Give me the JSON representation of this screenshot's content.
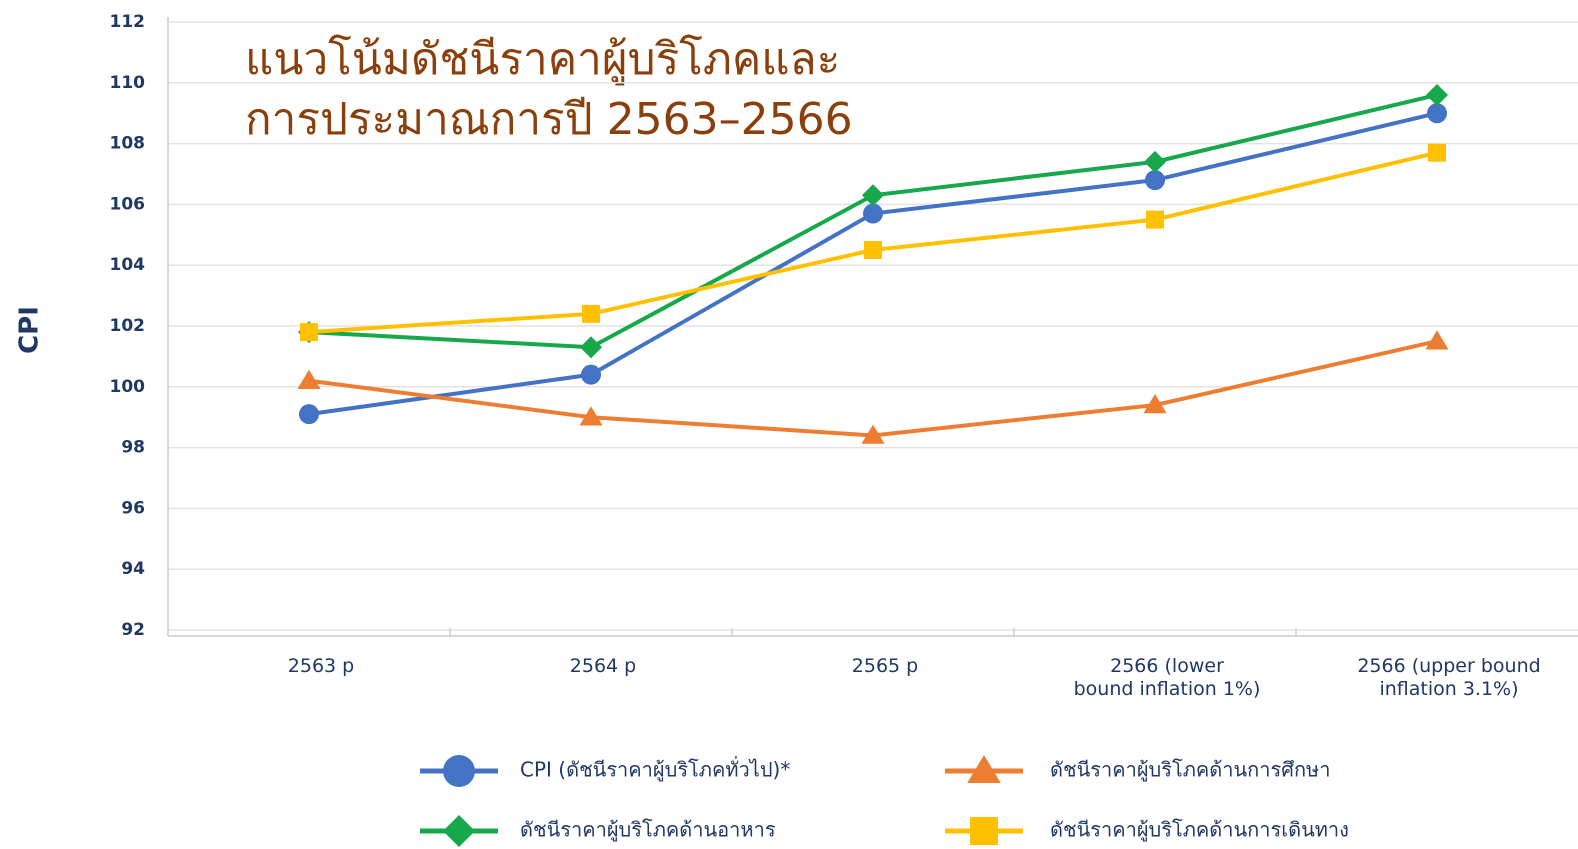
{
  "chart_data": {
    "type": "line",
    "title": [
      "แนวโน้มดัชนีราคาผู้บริโภคและ",
      "การประมาณการปี 2563–2566"
    ],
    "y_label": "CPI",
    "categories": [
      "2563 p",
      "2564 p",
      "2565 p",
      "2566 (lower\nbound inflation 1%)",
      "2566 (upper bound\ninflation 3.1%)"
    ],
    "series": [
      {
        "name": "CPI (ดัชนีราคาผู้บริโภคทั่วไป)*",
        "color": "#4472c4",
        "marker": "circle",
        "values": [
          99.1,
          100.4,
          105.7,
          106.8,
          109.0
        ]
      },
      {
        "name": "ดัชนีราคาผู้บริโภคด้านการศึกษา",
        "color": "#ed7d31",
        "marker": "triangle",
        "values": [
          100.2,
          99.0,
          98.4,
          99.4,
          101.5
        ]
      },
      {
        "name": "ดัชนีราคาผู้บริโภคด้านอาหาร",
        "color": "#16a84a",
        "marker": "diamond",
        "values": [
          101.8,
          101.3,
          106.3,
          107.4,
          109.6
        ]
      },
      {
        "name": "ดัชนีราคาผู้บริโภคด้านการเดินทาง",
        "color": "#ffc000",
        "marker": "square",
        "values": [
          101.8,
          102.4,
          104.5,
          105.5,
          107.7
        ]
      }
    ],
    "ylim": [
      92,
      112
    ],
    "yticks": [
      92,
      94,
      96,
      98,
      100,
      102,
      104,
      106,
      108,
      110,
      112
    ],
    "grid": true
  }
}
